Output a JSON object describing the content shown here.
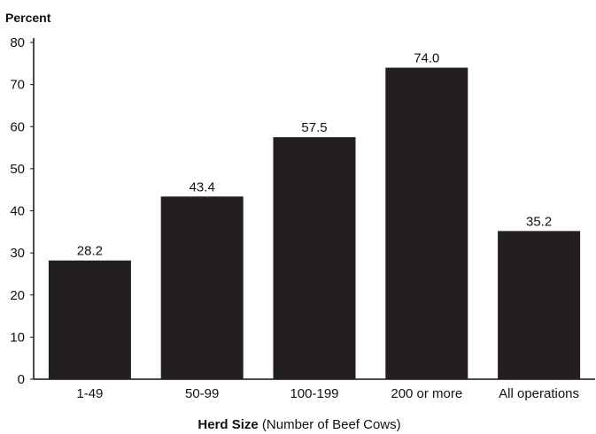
{
  "chart_data": {
    "type": "bar",
    "ylabel": "Percent",
    "xlabel_bold": "Herd Size",
    "xlabel_rest": " (Number of Beef Cows)",
    "categories": [
      "1-49",
      "50-99",
      "100-199",
      "200 or more",
      "All operations"
    ],
    "values": [
      28.2,
      43.4,
      57.5,
      74.0,
      35.2
    ],
    "value_labels": [
      "28.2",
      "43.4",
      "57.5",
      "74.0",
      "35.2"
    ],
    "ylim": [
      0,
      80
    ],
    "yticks": [
      0,
      10,
      20,
      30,
      40,
      50,
      60,
      70,
      80
    ],
    "bar_color": "#231f20",
    "grid": false
  }
}
